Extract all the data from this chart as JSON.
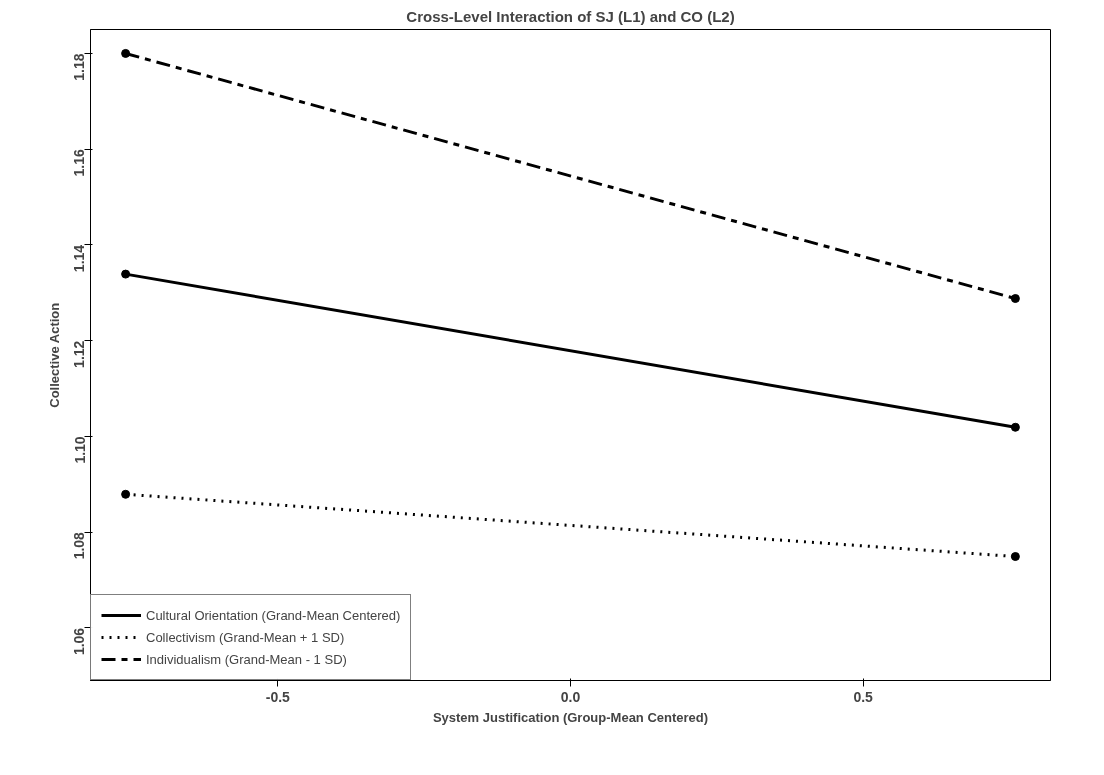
{
  "chart_data": {
    "type": "line",
    "title": "Cross-Level Interaction of SJ (L1) and CO (L2)",
    "xlabel": "System Justification (Group-Mean Centered)",
    "ylabel": "Collective Action",
    "x": [
      -0.76,
      0.76
    ],
    "series": [
      {
        "name": "Cultural Orientation (Grand-Mean Centered)",
        "color": "#000000",
        "line_style": "solid",
        "values": [
          1.1339,
          1.1019
        ]
      },
      {
        "name": "Collectivism (Grand-Mean + 1 SD)",
        "color": "#000000",
        "line_style": "dotted",
        "values": [
          1.0879,
          1.0749
        ]
      },
      {
        "name": "Individualism (Grand-Mean - 1 SD)",
        "color": "#000000",
        "line_style": "dashed",
        "values": [
          1.18,
          1.1288
        ]
      }
    ],
    "xlim": [
      -0.82,
      0.82
    ],
    "ylim": [
      1.049,
      1.185
    ],
    "xticks": [
      {
        "value": -0.5,
        "label": "-0.5"
      },
      {
        "value": 0,
        "label": "0.0"
      },
      {
        "value": 0.5,
        "label": "0.5"
      }
    ],
    "yticks": [
      {
        "value": 1.06,
        "label": "1.06"
      },
      {
        "value": 1.08,
        "label": "1.08"
      },
      {
        "value": 1.1,
        "label": "1.10"
      },
      {
        "value": 1.12,
        "label": "1.12"
      },
      {
        "value": 1.14,
        "label": "1.14"
      },
      {
        "value": 1.16,
        "label": "1.16"
      },
      {
        "value": 1.18,
        "label": "1.18"
      }
    ],
    "marker": "circle",
    "grid": false,
    "legend": "bottom left"
  }
}
